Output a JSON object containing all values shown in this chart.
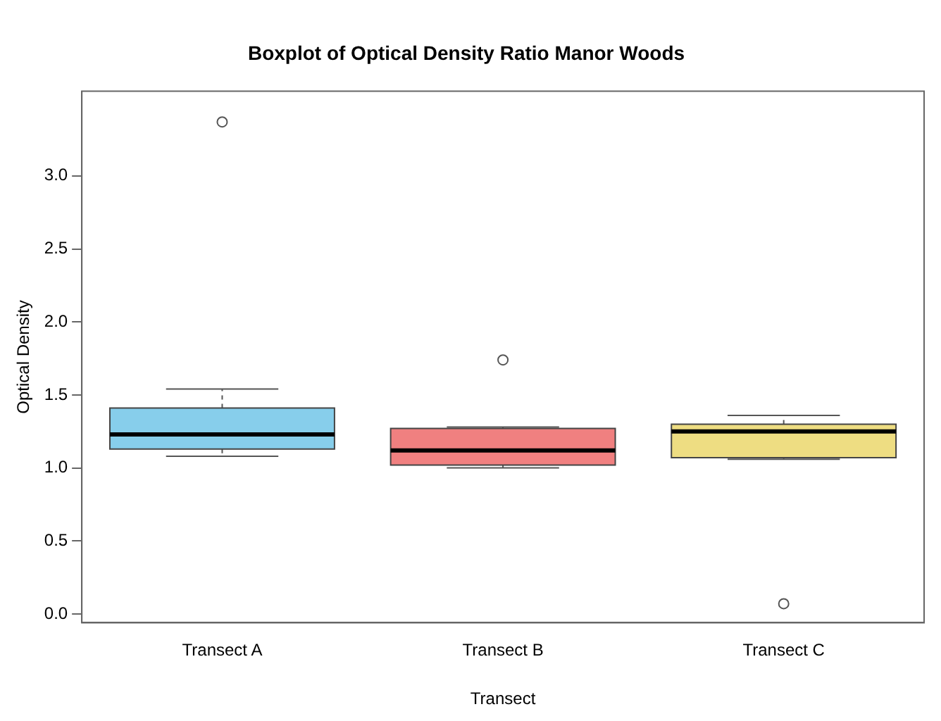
{
  "chart_data": {
    "type": "box",
    "title": "Boxplot of Optical Density Ratio Manor Woods",
    "xlabel": "Transect",
    "ylabel": "Optical Density",
    "categories": [
      "Transect A",
      "Transect B",
      "Transect C"
    ],
    "colors": [
      "#87ceeb",
      "#f08080",
      "#eedd82"
    ],
    "boxes": [
      {
        "low": 1.08,
        "q1": 1.13,
        "median": 1.23,
        "q3": 1.41,
        "high": 1.54,
        "outliers": [
          3.37
        ]
      },
      {
        "low": 1.0,
        "q1": 1.02,
        "median": 1.12,
        "q3": 1.27,
        "high": 1.28,
        "outliers": [
          1.74
        ]
      },
      {
        "low": 1.06,
        "q1": 1.07,
        "median": 1.25,
        "q3": 1.3,
        "high": 1.36,
        "outliers": [
          0.07
        ]
      }
    ],
    "ylim": [
      -0.06,
      3.58
    ],
    "yticks": [
      {
        "value": 0,
        "label": "0.0"
      },
      {
        "value": 0.5,
        "label": "0.5"
      },
      {
        "value": 1,
        "label": "1.0"
      },
      {
        "value": 1.5,
        "label": "1.5"
      },
      {
        "value": 2,
        "label": "2.0"
      },
      {
        "value": 2.5,
        "label": "2.5"
      },
      {
        "value": 3,
        "label": "3.0"
      }
    ],
    "grid": false,
    "legend": false,
    "marker": "circle"
  }
}
